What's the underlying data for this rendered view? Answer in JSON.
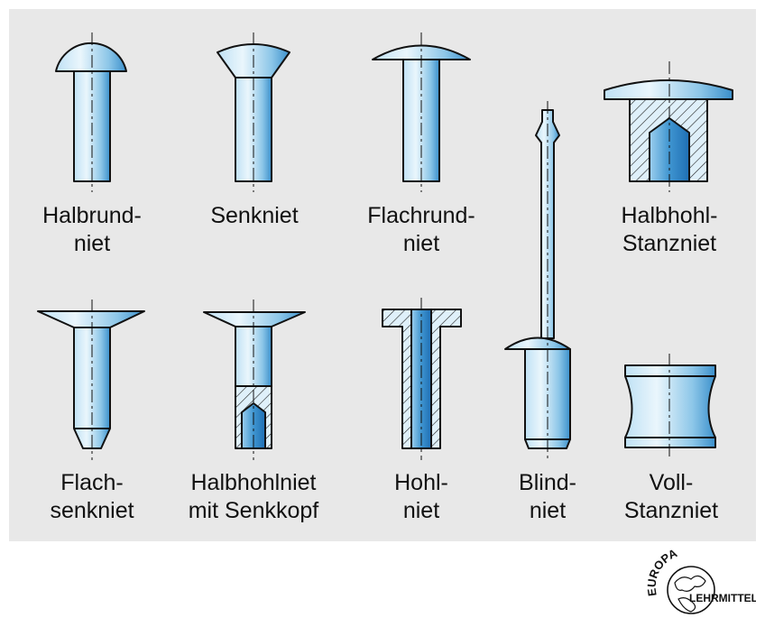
{
  "rivets": [
    {
      "lines": [
        "Halbrund-",
        "niet"
      ]
    },
    {
      "lines": [
        "Senkniet"
      ]
    },
    {
      "lines": [
        "Flachrund-",
        "niet"
      ]
    },
    {
      "lines": [
        "Halbhohl-",
        "Stanzniet"
      ]
    },
    {
      "lines": [
        "Flach-",
        "senkniet"
      ]
    },
    {
      "lines": [
        "Halbhohlniet",
        "mit Senkkopf"
      ]
    },
    {
      "lines": [
        "Hohl-",
        "niet"
      ]
    },
    {
      "lines": [
        "Blind-",
        "niet"
      ]
    },
    {
      "lines": [
        "Voll-",
        "Stanzniet"
      ]
    }
  ],
  "logo": {
    "top_text": "EUROPA",
    "bottom_text": "LEHRMITTEL"
  },
  "colors": {
    "panel": "#e8e8e8",
    "steel_light": "#d6edf8",
    "steel_mid": "#8fc8ea",
    "steel_dark": "#2f87c8",
    "outline": "#111111"
  }
}
